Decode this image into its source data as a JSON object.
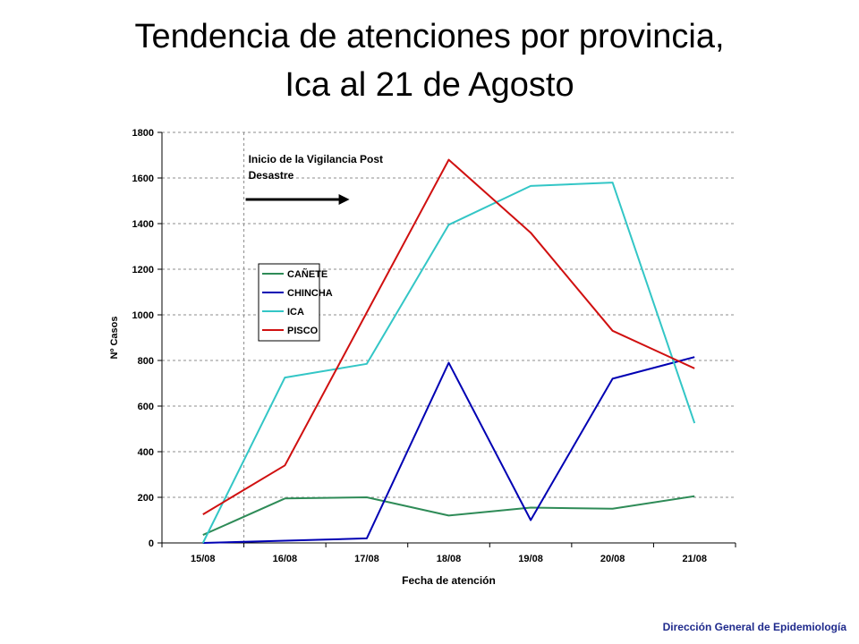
{
  "title": {
    "line1": "Tendencia de atenciones por provincia,",
    "line2": "Ica al 21 de Agosto"
  },
  "footer": "Dirección General de Epidemiología",
  "chart_data": {
    "type": "line",
    "categories": [
      "15/08",
      "16/08",
      "17/08",
      "18/08",
      "19/08",
      "20/08",
      "21/08"
    ],
    "series": [
      {
        "name": "CAÑETE",
        "color": "#2e8b57",
        "values": [
          35,
          195,
          200,
          120,
          155,
          150,
          205
        ]
      },
      {
        "name": "CHINCHA",
        "color": "#0000b3",
        "values": [
          0,
          10,
          20,
          790,
          100,
          720,
          815
        ]
      },
      {
        "name": "ICA",
        "color": "#33c6c6",
        "values": [
          0,
          725,
          785,
          1395,
          1565,
          1580,
          525
        ]
      },
      {
        "name": "PISCO",
        "color": "#d01010",
        "values": [
          125,
          340,
          1010,
          1680,
          1360,
          930,
          765
        ]
      }
    ],
    "xlabel": "Fecha de atención",
    "ylabel": "Nº Casos",
    "ylim": [
      0,
      1800
    ],
    "yticks": [
      0,
      200,
      400,
      600,
      800,
      1000,
      1200,
      1400,
      1600,
      1800
    ],
    "grid": true,
    "legend_placement": "upper-left",
    "annotation": {
      "text_line1": "Inicio de la Vigilancia Post",
      "text_line2": "Desastre",
      "x": 15.5
    }
  }
}
